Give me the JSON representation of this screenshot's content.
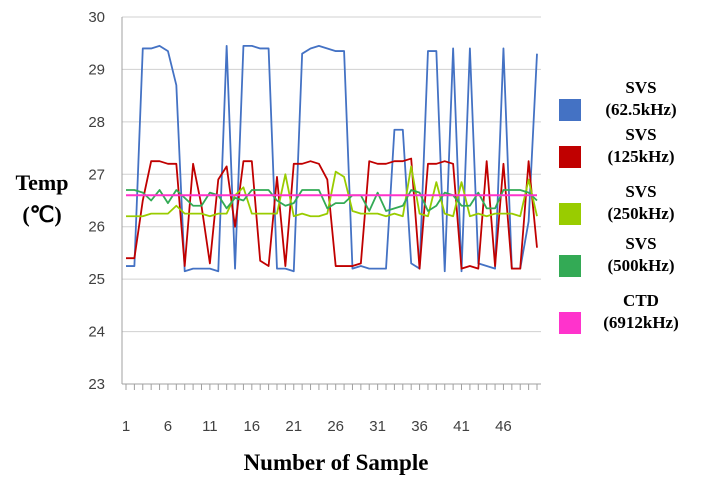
{
  "chart_data": {
    "type": "line",
    "xlabel": "Number of Sample",
    "ylabel_line1": "Temp",
    "ylabel_line2": "(℃)",
    "ylim": [
      23,
      30
    ],
    "xlim": [
      1,
      50
    ],
    "y_ticks": [
      "23",
      "24",
      "25",
      "26",
      "27",
      "28",
      "29",
      "30"
    ],
    "x_ticks": [
      "1",
      "6",
      "11",
      "16",
      "21",
      "26",
      "31",
      "36",
      "41",
      "46"
    ],
    "grid": "horizontal",
    "legend_position": "right",
    "series": [
      {
        "name": "SVS (62.5kHz)",
        "label_lines": [
          "SVS",
          "(62.5kHz)"
        ],
        "color": "#4472C4",
        "values": [
          25.25,
          25.25,
          29.4,
          29.4,
          29.45,
          29.35,
          28.7,
          25.15,
          25.2,
          25.2,
          25.2,
          25.15,
          29.45,
          25.2,
          29.45,
          29.45,
          29.4,
          29.4,
          25.2,
          25.2,
          25.15,
          29.3,
          29.4,
          29.45,
          29.4,
          29.35,
          29.35,
          25.2,
          25.25,
          25.2,
          25.2,
          25.2,
          27.85,
          27.85,
          25.3,
          25.2,
          29.35,
          29.35,
          25.15,
          29.4,
          25.15,
          29.4,
          25.3,
          25.25,
          25.2,
          29.4,
          25.2,
          25.2,
          26.1,
          29.3
        ]
      },
      {
        "name": "SVS (125kHz)",
        "label_lines": [
          "SVS",
          "(125kHz)"
        ],
        "color": "#C00000",
        "values": [
          25.4,
          25.4,
          26.5,
          27.25,
          27.25,
          27.2,
          27.2,
          25.25,
          27.2,
          26.4,
          25.3,
          26.9,
          27.15,
          26.0,
          27.25,
          27.25,
          25.35,
          25.25,
          26.95,
          25.25,
          27.2,
          27.2,
          27.25,
          27.2,
          26.9,
          25.25,
          25.25,
          25.25,
          25.3,
          27.25,
          27.2,
          27.2,
          27.25,
          27.25,
          27.3,
          25.2,
          27.2,
          27.2,
          27.25,
          27.2,
          25.2,
          25.25,
          25.2,
          27.25,
          25.25,
          27.2,
          25.2,
          25.2,
          27.25,
          25.6
        ]
      },
      {
        "name": "SVS (250kHz)",
        "label_lines": [
          "SVS",
          "(250kHz)"
        ],
        "color": "#99CC00",
        "values": [
          26.2,
          26.2,
          26.2,
          26.25,
          26.25,
          26.25,
          26.4,
          26.25,
          26.25,
          26.25,
          26.2,
          26.25,
          26.25,
          26.6,
          26.75,
          26.25,
          26.25,
          26.25,
          26.25,
          27.0,
          26.2,
          26.25,
          26.2,
          26.2,
          26.25,
          27.05,
          26.95,
          26.3,
          26.25,
          26.25,
          26.25,
          26.2,
          26.25,
          26.2,
          27.15,
          26.25,
          26.2,
          26.85,
          26.25,
          26.2,
          26.85,
          26.2,
          26.25,
          26.2,
          26.25,
          26.25,
          26.25,
          26.2,
          26.9,
          26.2
        ]
      },
      {
        "name": "SVS (500kHz)",
        "label_lines": [
          "SVS",
          "(500kHz)"
        ],
        "color": "#33AA55",
        "values": [
          26.7,
          26.7,
          26.65,
          26.5,
          26.7,
          26.45,
          26.7,
          26.55,
          26.4,
          26.4,
          26.65,
          26.6,
          26.35,
          26.55,
          26.5,
          26.7,
          26.7,
          26.7,
          26.5,
          26.4,
          26.45,
          26.7,
          26.7,
          26.7,
          26.35,
          26.45,
          26.45,
          26.6,
          26.6,
          26.3,
          26.65,
          26.3,
          26.35,
          26.4,
          26.7,
          26.65,
          26.3,
          26.4,
          26.65,
          26.6,
          26.4,
          26.4,
          26.65,
          26.35,
          26.35,
          26.7,
          26.7,
          26.7,
          26.65,
          26.5
        ]
      },
      {
        "name": "CTD (6912kHz)",
        "label_lines": [
          "CTD",
          "(6912kHz)"
        ],
        "color": "#FF33CC",
        "values": [
          26.6,
          26.6,
          26.6,
          26.6,
          26.6,
          26.6,
          26.6,
          26.6,
          26.6,
          26.6,
          26.6,
          26.6,
          26.6,
          26.6,
          26.6,
          26.6,
          26.6,
          26.6,
          26.6,
          26.6,
          26.6,
          26.6,
          26.6,
          26.6,
          26.6,
          26.6,
          26.6,
          26.6,
          26.6,
          26.6,
          26.6,
          26.6,
          26.6,
          26.6,
          26.6,
          26.6,
          26.6,
          26.6,
          26.6,
          26.6,
          26.6,
          26.6,
          26.6,
          26.6,
          26.6,
          26.6,
          26.6,
          26.6,
          26.6,
          26.6
        ]
      }
    ]
  }
}
